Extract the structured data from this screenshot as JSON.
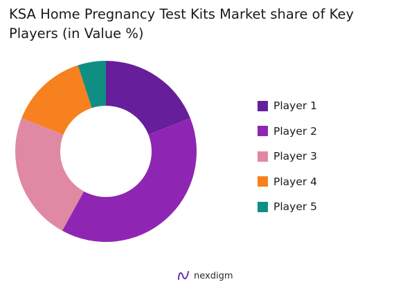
{
  "title": "KSA Home Pregnancy Test Kits Market share of Key Players (in Value %)",
  "brand": {
    "name": "nexdigm",
    "icon": "nexdigm-logo-icon"
  },
  "chart_data": {
    "type": "pie",
    "variant": "donut",
    "title": "KSA Home Pregnancy Test Kits Market share of Key Players (in Value %)",
    "categories": [
      "Player 1",
      "Player 2",
      "Player 3",
      "Player 4",
      "Player 5"
    ],
    "values": [
      19,
      39,
      23,
      14,
      5
    ],
    "colors": [
      "#661e9a",
      "#8f26b3",
      "#df8aa2",
      "#f7801f",
      "#0f8f84"
    ],
    "legend": "right"
  }
}
